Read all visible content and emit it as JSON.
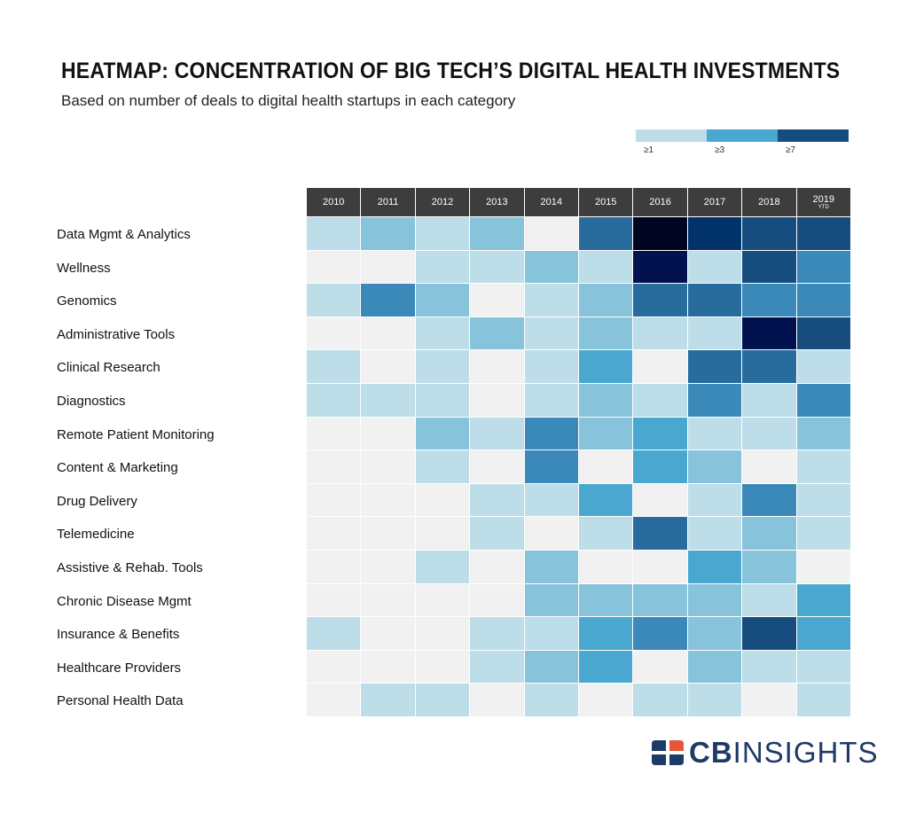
{
  "title": "HEATMAP: CONCENTRATION OF BIG TECH’S DIGITAL HEALTH INVESTMENTS",
  "subtitle": "Based on number of deals to digital health startups in each category",
  "legend": [
    {
      "label": "≥1",
      "color": "#bddde8"
    },
    {
      "label": "≥3",
      "color": "#4aa8d0"
    },
    {
      "label": "≥7",
      "color": "#164d7e"
    }
  ],
  "colors": {
    "0": "#f1f1f1",
    "1": "#bddde8",
    "2": "#88c3dc",
    "3": "#4aa8d0",
    "4": "#3a89b8",
    "5": "#276c9c",
    "6": "#164d7e",
    "7": "#02326a",
    "8": "#01124f",
    "9": "#000521"
  },
  "logo": {
    "text_bold": "CB",
    "text_light": "INSIGHTS",
    "mark_colors": [
      "#1e3a66",
      "#e8553a"
    ]
  },
  "chart_data": {
    "type": "heatmap",
    "x": [
      "2010",
      "2011",
      "2012",
      "2013",
      "2014",
      "2015",
      "2016",
      "2017",
      "2018",
      "2019"
    ],
    "x_sub": [
      "",
      "",
      "",
      "",
      "",
      "",
      "",
      "",
      "",
      "YTD"
    ],
    "y": [
      "Data Mgmt & Analytics",
      "Wellness",
      "Genomics",
      "Administrative Tools",
      "Clinical Research",
      "Diagnostics",
      "Remote Patient Monitoring",
      "Content & Marketing",
      "Drug Delivery",
      "Telemedicine",
      "Assistive & Rehab. Tools",
      "Chronic Disease Mgmt",
      "Insurance & Benefits",
      "Healthcare Providers",
      "Personal Health Data"
    ],
    "intensity": [
      [
        1,
        2,
        1,
        2,
        0,
        5,
        9,
        7,
        6,
        6
      ],
      [
        0,
        0,
        1,
        1,
        2,
        1,
        8,
        1,
        6,
        4
      ],
      [
        1,
        4,
        2,
        0,
        1,
        2,
        5,
        5,
        4,
        4
      ],
      [
        0,
        0,
        1,
        2,
        1,
        2,
        1,
        1,
        8,
        6
      ],
      [
        1,
        0,
        1,
        0,
        1,
        3,
        0,
        5,
        5,
        1
      ],
      [
        1,
        1,
        1,
        0,
        1,
        2,
        1,
        4,
        1,
        4
      ],
      [
        0,
        0,
        2,
        1,
        4,
        2,
        3,
        1,
        1,
        2
      ],
      [
        0,
        0,
        1,
        0,
        4,
        0,
        3,
        2,
        0,
        1
      ],
      [
        0,
        0,
        0,
        1,
        1,
        3,
        0,
        1,
        4,
        1
      ],
      [
        0,
        0,
        0,
        1,
        0,
        1,
        5,
        1,
        2,
        1
      ],
      [
        0,
        0,
        1,
        0,
        2,
        0,
        0,
        3,
        2,
        0
      ],
      [
        0,
        0,
        0,
        0,
        2,
        2,
        2,
        2,
        1,
        3
      ],
      [
        1,
        0,
        0,
        1,
        1,
        3,
        4,
        2,
        6,
        3
      ],
      [
        0,
        0,
        0,
        1,
        2,
        3,
        0,
        2,
        1,
        1
      ],
      [
        0,
        1,
        1,
        0,
        1,
        0,
        1,
        1,
        0,
        1
      ]
    ]
  }
}
